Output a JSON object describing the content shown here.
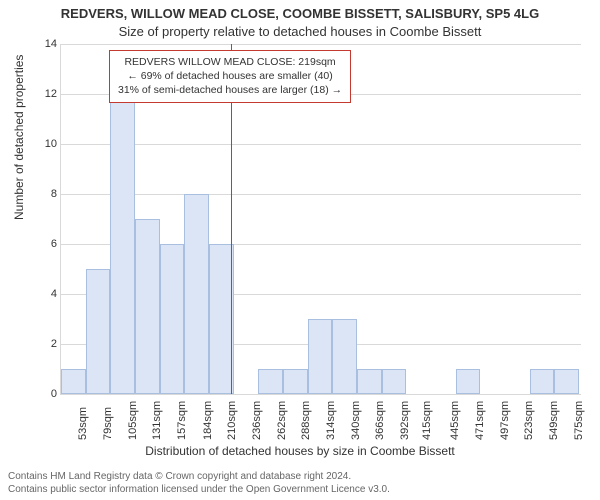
{
  "title": {
    "line1": "REDVERS, WILLOW MEAD CLOSE, COOMBE BISSETT, SALISBURY, SP5 4LG",
    "line2": "Size of property relative to detached houses in Coombe Bissett",
    "fontsize_line1": 13,
    "fontsize_line2": 13,
    "color": "#333333"
  },
  "xlabel": {
    "text": "Distribution of detached houses by size in Coombe Bissett",
    "fontsize": 12
  },
  "ylabel": {
    "text": "Number of detached properties",
    "fontsize": 12
  },
  "chart": {
    "type": "histogram",
    "background_color": "#ffffff",
    "grid_color": "#d9d9d9",
    "axis_color": "#d9d9d9",
    "bar_fill": "#dbe5f5",
    "bar_border": "#a9bfe0",
    "vline_color": "#c43a31",
    "infobox_border": "#c43a31",
    "xlim_min": 40,
    "xlim_max": 588,
    "ylim_min": 0,
    "ylim_max": 14,
    "ytick_step": 2,
    "yticks": [
      0,
      2,
      4,
      6,
      8,
      10,
      12,
      14
    ],
    "xticks": [
      {
        "v": 53,
        "label": "53sqm"
      },
      {
        "v": 79,
        "label": "79sqm"
      },
      {
        "v": 105,
        "label": "105sqm"
      },
      {
        "v": 131,
        "label": "131sqm"
      },
      {
        "v": 157,
        "label": "157sqm"
      },
      {
        "v": 184,
        "label": "184sqm"
      },
      {
        "v": 210,
        "label": "210sqm"
      },
      {
        "v": 236,
        "label": "236sqm"
      },
      {
        "v": 262,
        "label": "262sqm"
      },
      {
        "v": 288,
        "label": "288sqm"
      },
      {
        "v": 314,
        "label": "314sqm"
      },
      {
        "v": 340,
        "label": "340sqm"
      },
      {
        "v": 366,
        "label": "366sqm"
      },
      {
        "v": 392,
        "label": "392sqm"
      },
      {
        "v": 415,
        "label": "415sqm"
      },
      {
        "v": 445,
        "label": "445sqm"
      },
      {
        "v": 471,
        "label": "471sqm"
      },
      {
        "v": 497,
        "label": "497sqm"
      },
      {
        "v": 523,
        "label": "523sqm"
      },
      {
        "v": 549,
        "label": "549sqm"
      },
      {
        "v": 575,
        "label": "575sqm"
      }
    ],
    "bin_width": 26,
    "bars": [
      {
        "x": 40,
        "h": 1
      },
      {
        "x": 66,
        "h": 5
      },
      {
        "x": 92,
        "h": 12
      },
      {
        "x": 118,
        "h": 7
      },
      {
        "x": 144,
        "h": 6
      },
      {
        "x": 170,
        "h": 8
      },
      {
        "x": 196,
        "h": 6
      },
      {
        "x": 222,
        "h": 0
      },
      {
        "x": 248,
        "h": 1
      },
      {
        "x": 274,
        "h": 1
      },
      {
        "x": 300,
        "h": 3
      },
      {
        "x": 326,
        "h": 3
      },
      {
        "x": 352,
        "h": 1
      },
      {
        "x": 378,
        "h": 1
      },
      {
        "x": 404,
        "h": 0
      },
      {
        "x": 430,
        "h": 0
      },
      {
        "x": 456,
        "h": 1
      },
      {
        "x": 482,
        "h": 0
      },
      {
        "x": 508,
        "h": 0
      },
      {
        "x": 534,
        "h": 1
      },
      {
        "x": 560,
        "h": 1
      }
    ],
    "marker_value": 219,
    "label_fontsize": 11
  },
  "info_box": {
    "line1": "REDVERS WILLOW MEAD CLOSE: 219sqm",
    "line2": "← 69% of detached houses are smaller (40)",
    "line3": "31% of semi-detached houses are larger (18) →",
    "fontsize": 10.5
  },
  "notice": {
    "line1": "Contains HM Land Registry data © Crown copyright and database right 2024.",
    "line2": "Contains public sector information licensed under the Open Government Licence v3.0.",
    "color": "#666666",
    "fontsize": 10
  }
}
